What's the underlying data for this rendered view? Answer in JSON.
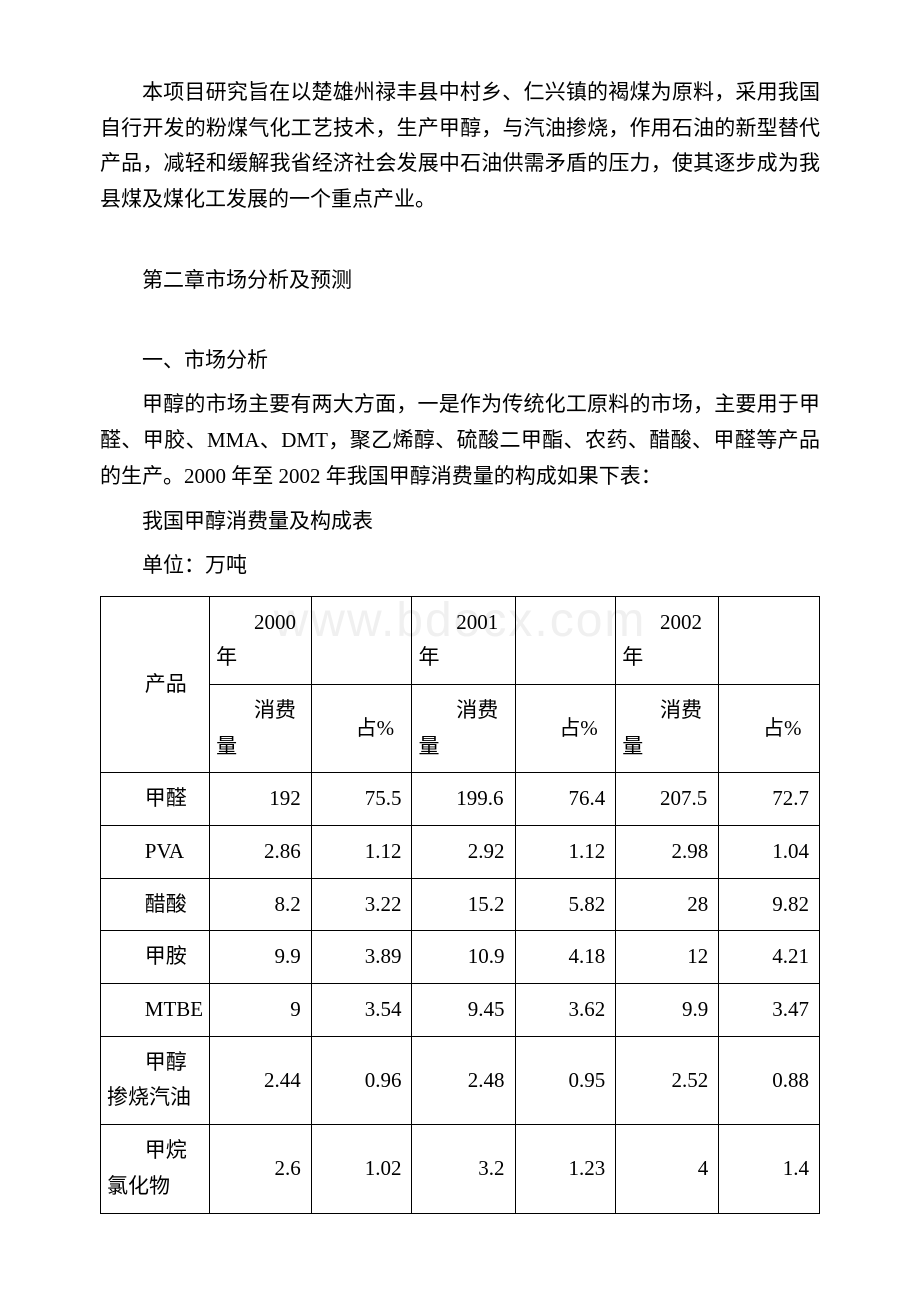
{
  "paragraphs": {
    "intro": "本项目研究旨在以楚雄州禄丰县中村乡、仁兴镇的褐煤为原料，采用我国自行开发的粉煤气化工艺技术，生产甲醇，与汽油掺烧，作用石油的新型替代产品，减轻和缓解我省经济社会发展中石油供需矛盾的压力，使其逐步成为我县煤及煤化工发展的一个重点产业。",
    "chapter_title": "第二章市场分析及预测",
    "section_title": "一、市场分析",
    "market_desc": "甲醇的市场主要有两大方面，一是作为传统化工原料的市场，主要用于甲醛、甲胶、MMA、DMT，聚乙烯醇、硫酸二甲酯、农药、醋酸、甲醛等产品的生产。2000 年至 2002 年我国甲醇消费量的构成如果下表：",
    "table_title": "我国甲醇消费量及构成表",
    "table_unit": "单位：万吨"
  },
  "table": {
    "header": {
      "product": "产品",
      "year2000": "2000年",
      "year2001": "2001年",
      "year2002": "2002年",
      "consumption": "消费量",
      "percent": "占%"
    },
    "rows": [
      {
        "name": "甲醛",
        "c2000": "192",
        "p2000": "75.5",
        "c2001": "199.6",
        "p2001": "76.4",
        "c2002": "207.5",
        "p2002": "72.7"
      },
      {
        "name": "PVA",
        "c2000": "2.86",
        "p2000": "1.12",
        "c2001": "2.92",
        "p2001": "1.12",
        "c2002": "2.98",
        "p2002": "1.04"
      },
      {
        "name": "醋酸",
        "c2000": "8.2",
        "p2000": "3.22",
        "c2001": "15.2",
        "p2001": "5.82",
        "c2002": "28",
        "p2002": "9.82"
      },
      {
        "name": "甲胺",
        "c2000": "9.9",
        "p2000": "3.89",
        "c2001": "10.9",
        "p2001": "4.18",
        "c2002": "12",
        "p2002": "4.21"
      },
      {
        "name": "MTBE",
        "c2000": "9",
        "p2000": "3.54",
        "c2001": "9.45",
        "p2001": "3.62",
        "c2002": "9.9",
        "p2002": "3.47"
      },
      {
        "name": "甲醇掺烧汽油",
        "c2000": "2.44",
        "p2000": "0.96",
        "c2001": "2.48",
        "p2001": "0.95",
        "c2002": "2.52",
        "p2002": "0.88"
      },
      {
        "name": "甲烷氯化物",
        "c2000": "2.6",
        "p2000": "1.02",
        "c2001": "3.2",
        "p2001": "1.23",
        "c2002": "4",
        "p2002": "1.4"
      }
    ]
  },
  "watermark": "www.bdocx.com"
}
